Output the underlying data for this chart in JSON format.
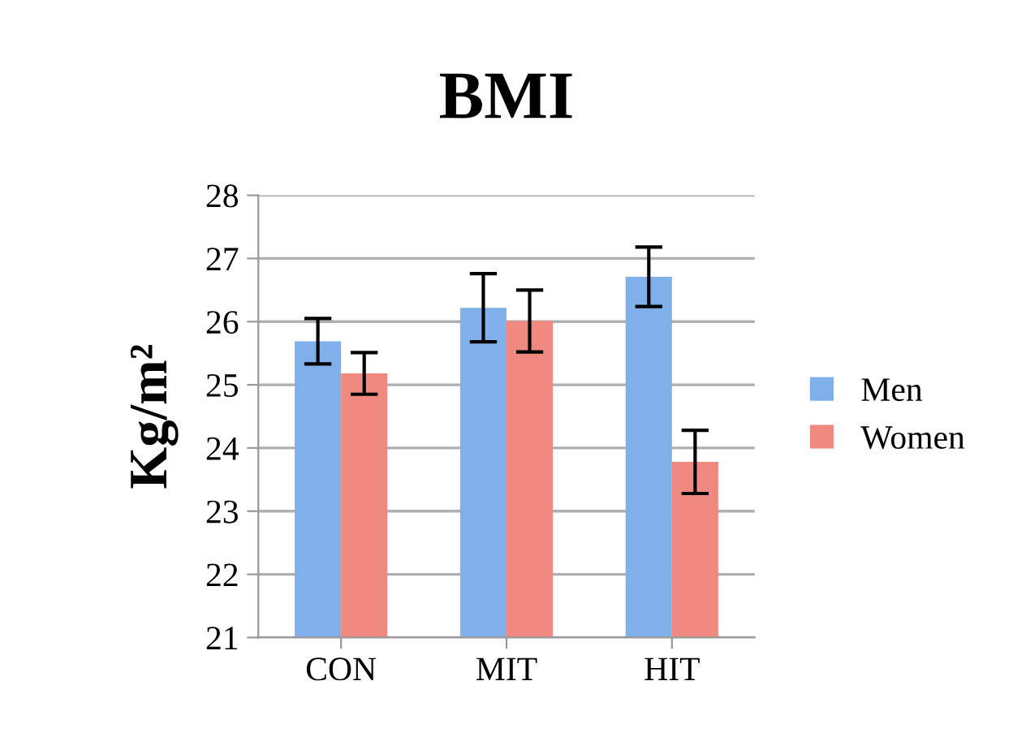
{
  "chart_data": {
    "type": "bar",
    "title": "BMI",
    "ylabel": "Kg/m²",
    "categories": [
      "CON",
      "MIT",
      "HIT"
    ],
    "series": [
      {
        "name": "Men",
        "color": "#7fb0ea",
        "values": [
          25.69,
          26.22,
          26.71
        ],
        "errors": [
          0.36,
          0.54,
          0.47
        ]
      },
      {
        "name": "Women",
        "color": "#f08a80",
        "values": [
          25.18,
          26.01,
          23.78
        ],
        "errors": [
          0.33,
          0.49,
          0.5
        ]
      }
    ],
    "ylim": [
      21,
      28
    ],
    "yticks": [
      21,
      22,
      23,
      24,
      25,
      26,
      27,
      28
    ],
    "grid": "y",
    "legend": "right"
  }
}
